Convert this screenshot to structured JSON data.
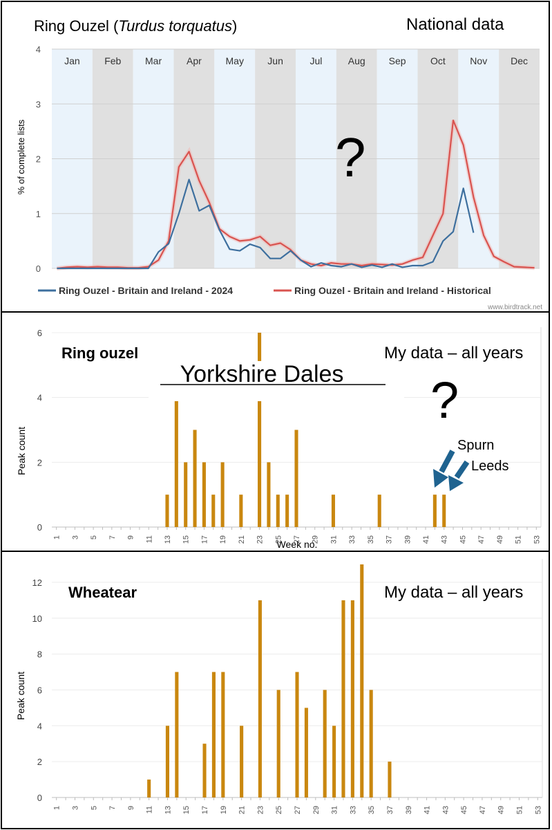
{
  "panel1": {
    "title_main": "Ring Ouzel (",
    "title_italic": "Turdus torquatus",
    "title_close": ")",
    "corner_label": "National data",
    "question": "?",
    "source": "www.birdtrack.net",
    "chart_data": {
      "type": "line",
      "title": "Ring Ouzel (Turdus torquatus)",
      "xlabel": "",
      "ylabel": "% of complete lists",
      "ylim": [
        0,
        4
      ],
      "yticks": [
        "0",
        "1",
        "2",
        "3",
        "4"
      ],
      "months": [
        "Jan",
        "Feb",
        "Mar",
        "Apr",
        "May",
        "Jun",
        "Jul",
        "Aug",
        "Sep",
        "Oct",
        "Nov",
        "Dec"
      ],
      "x_unit": "week (1-48, 4 per month)",
      "series": [
        {
          "name": "Ring Ouzel - Britain and Ireland - 2024",
          "color": "#3d6f9e",
          "x": [
            1,
            2,
            3,
            4,
            5,
            6,
            7,
            8,
            9,
            10,
            11,
            12,
            13,
            14,
            15,
            16,
            17,
            18,
            19,
            20,
            21,
            22,
            23,
            24,
            25,
            26,
            27,
            28,
            29,
            30,
            31,
            32,
            33,
            34,
            35,
            36,
            37,
            38,
            39,
            40,
            41,
            42
          ],
          "values": [
            0,
            0,
            0,
            0,
            0,
            0,
            0,
            0,
            0,
            0,
            0.3,
            0.45,
            1.0,
            1.62,
            1.05,
            1.15,
            0.7,
            0.35,
            0.32,
            0.44,
            0.38,
            0.18,
            0.18,
            0.32,
            0.15,
            0.03,
            0.1,
            0.05,
            0.03,
            0.08,
            0.02,
            0.06,
            0.02,
            0.08,
            0.02,
            0.05,
            0.05,
            0.12,
            0.5,
            0.67,
            1.46,
            0.65
          ]
        },
        {
          "name": "Ring Ouzel - Britain and Ireland - Historical",
          "color": "#d9534f",
          "x": [
            1,
            2,
            3,
            4,
            5,
            6,
            7,
            8,
            9,
            10,
            11,
            12,
            13,
            14,
            15,
            16,
            17,
            18,
            19,
            20,
            21,
            22,
            23,
            24,
            25,
            26,
            27,
            28,
            29,
            30,
            31,
            32,
            33,
            34,
            35,
            36,
            37,
            38,
            39,
            40,
            41,
            42,
            43,
            44,
            45,
            46,
            47,
            48
          ],
          "values": [
            0,
            0.02,
            0.03,
            0.02,
            0.03,
            0.02,
            0.02,
            0.01,
            0.01,
            0.03,
            0.15,
            0.5,
            1.85,
            2.13,
            1.6,
            1.2,
            0.72,
            0.58,
            0.5,
            0.52,
            0.58,
            0.42,
            0.46,
            0.34,
            0.15,
            0.08,
            0.05,
            0.1,
            0.08,
            0.08,
            0.05,
            0.08,
            0.07,
            0.06,
            0.08,
            0.15,
            0.2,
            0.6,
            1.0,
            2.7,
            2.25,
            1.3,
            0.6,
            0.22,
            0.12,
            0.03,
            0.02,
            0.01
          ]
        }
      ],
      "legend_position": "bottom"
    }
  },
  "panel2": {
    "species": "Ring ouzel",
    "subtitle": "My data – all years",
    "region": "Yorkshire Dales",
    "question": "?",
    "annotation_spurn": "Spurn",
    "annotation_leeds": "Leeds",
    "chart_data": {
      "type": "bar",
      "title": "Ring ouzel",
      "xlabel": "Week no.",
      "ylabel": "Peak count",
      "ylim": [
        0,
        6
      ],
      "yticks": [
        "0",
        "2",
        "4",
        "6"
      ],
      "x_range": [
        1,
        53
      ],
      "xtick_labels": [
        "1",
        "3",
        "5",
        "7",
        "9",
        "11",
        "13",
        "15",
        "17",
        "19",
        "21",
        "23",
        "25",
        "27",
        "29",
        "31",
        "33",
        "35",
        "37",
        "39",
        "41",
        "43",
        "45",
        "47",
        "49",
        "51",
        "53"
      ],
      "weeks": [
        13,
        14,
        15,
        16,
        17,
        18,
        19,
        21,
        23,
        24,
        25,
        26,
        27,
        31,
        36,
        42,
        43
      ],
      "values": [
        1,
        4,
        2,
        3,
        2,
        1,
        2,
        1,
        6,
        2,
        1,
        1,
        3,
        1,
        1,
        1,
        1
      ],
      "bar_color": "#c9870f"
    }
  },
  "panel3": {
    "species": "Wheatear",
    "subtitle": "My data – all years",
    "chart_data": {
      "type": "bar",
      "title": "Wheatear",
      "xlabel": "",
      "ylabel": "Peak count",
      "ylim": [
        0,
        13
      ],
      "yticks": [
        "0",
        "2",
        "4",
        "6",
        "8",
        "10",
        "12"
      ],
      "x_range": [
        1,
        53
      ],
      "xtick_labels": [
        "1",
        "3",
        "5",
        "7",
        "9",
        "11",
        "13",
        "15",
        "17",
        "19",
        "21",
        "23",
        "25",
        "27",
        "29",
        "31",
        "33",
        "35",
        "37",
        "39",
        "41",
        "43",
        "45",
        "47",
        "49",
        "51",
        "53"
      ],
      "weeks": [
        11,
        13,
        14,
        17,
        18,
        19,
        21,
        23,
        25,
        27,
        28,
        30,
        31,
        32,
        33,
        34,
        35,
        37
      ],
      "values": [
        1,
        4,
        7,
        3,
        7,
        7,
        4,
        11,
        6,
        7,
        5,
        6,
        4,
        11,
        11,
        13,
        6,
        2
      ],
      "bar_color": "#c9870f"
    }
  }
}
